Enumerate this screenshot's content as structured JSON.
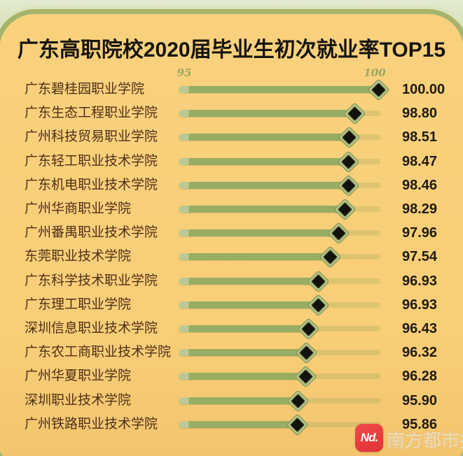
{
  "title": "广东高职院校2020届毕业生初次就业率TOP15",
  "chart_data": {
    "type": "bar",
    "orientation": "horizontal",
    "title": "广东高职院校2020届毕业生初次就业率TOP15",
    "axis_ticks": [
      "95",
      "100"
    ],
    "axis_range_labeled": [
      95,
      100
    ],
    "marker": "diamond",
    "grid": false,
    "legend": "none",
    "categories": [
      "广东碧桂园职业学院",
      "广东生态工程职业学院",
      "广州科技贸易职业学院",
      "广东轻工职业技术学院",
      "广东机电职业技术学院",
      "广州华商职业学院",
      "广州番禺职业技术学院",
      "东莞职业技术学院",
      "广东科学技术职业学院",
      "广东理工职业学院",
      "深圳信息职业技术学院",
      "广东农工商职业技术学院",
      "广州华夏职业学院",
      "深圳职业技术学院",
      "广州铁路职业技术学院"
    ],
    "values": [
      100.0,
      98.8,
      98.51,
      98.47,
      98.46,
      98.29,
      97.96,
      97.54,
      96.93,
      96.93,
      96.43,
      96.32,
      96.28,
      95.9,
      95.86
    ],
    "value_labels": [
      "100.00",
      "98.80",
      "98.51",
      "98.47",
      "98.46",
      "98.29",
      "97.96",
      "97.54",
      "96.93",
      "96.93",
      "96.43",
      "96.32",
      "96.28",
      "95.90",
      "95.86"
    ],
    "ylabel": "",
    "xlabel": ""
  },
  "colors": {
    "card_background": "#f8ce77",
    "page_background": "#c6d29b",
    "card_border": "#a6b46b",
    "bar_fill": "#97ad64",
    "bar_track": "#a3aa5e",
    "marker_outer": "#b3c184",
    "marker_inner": "#14120d",
    "label_text": "#4e2f18",
    "value_text": "#1e1a12",
    "axis_text": "#9aa662",
    "logo_red": "#e23338"
  },
  "watermark": {
    "logo_text": "Nd.",
    "name": "南方都市报"
  }
}
